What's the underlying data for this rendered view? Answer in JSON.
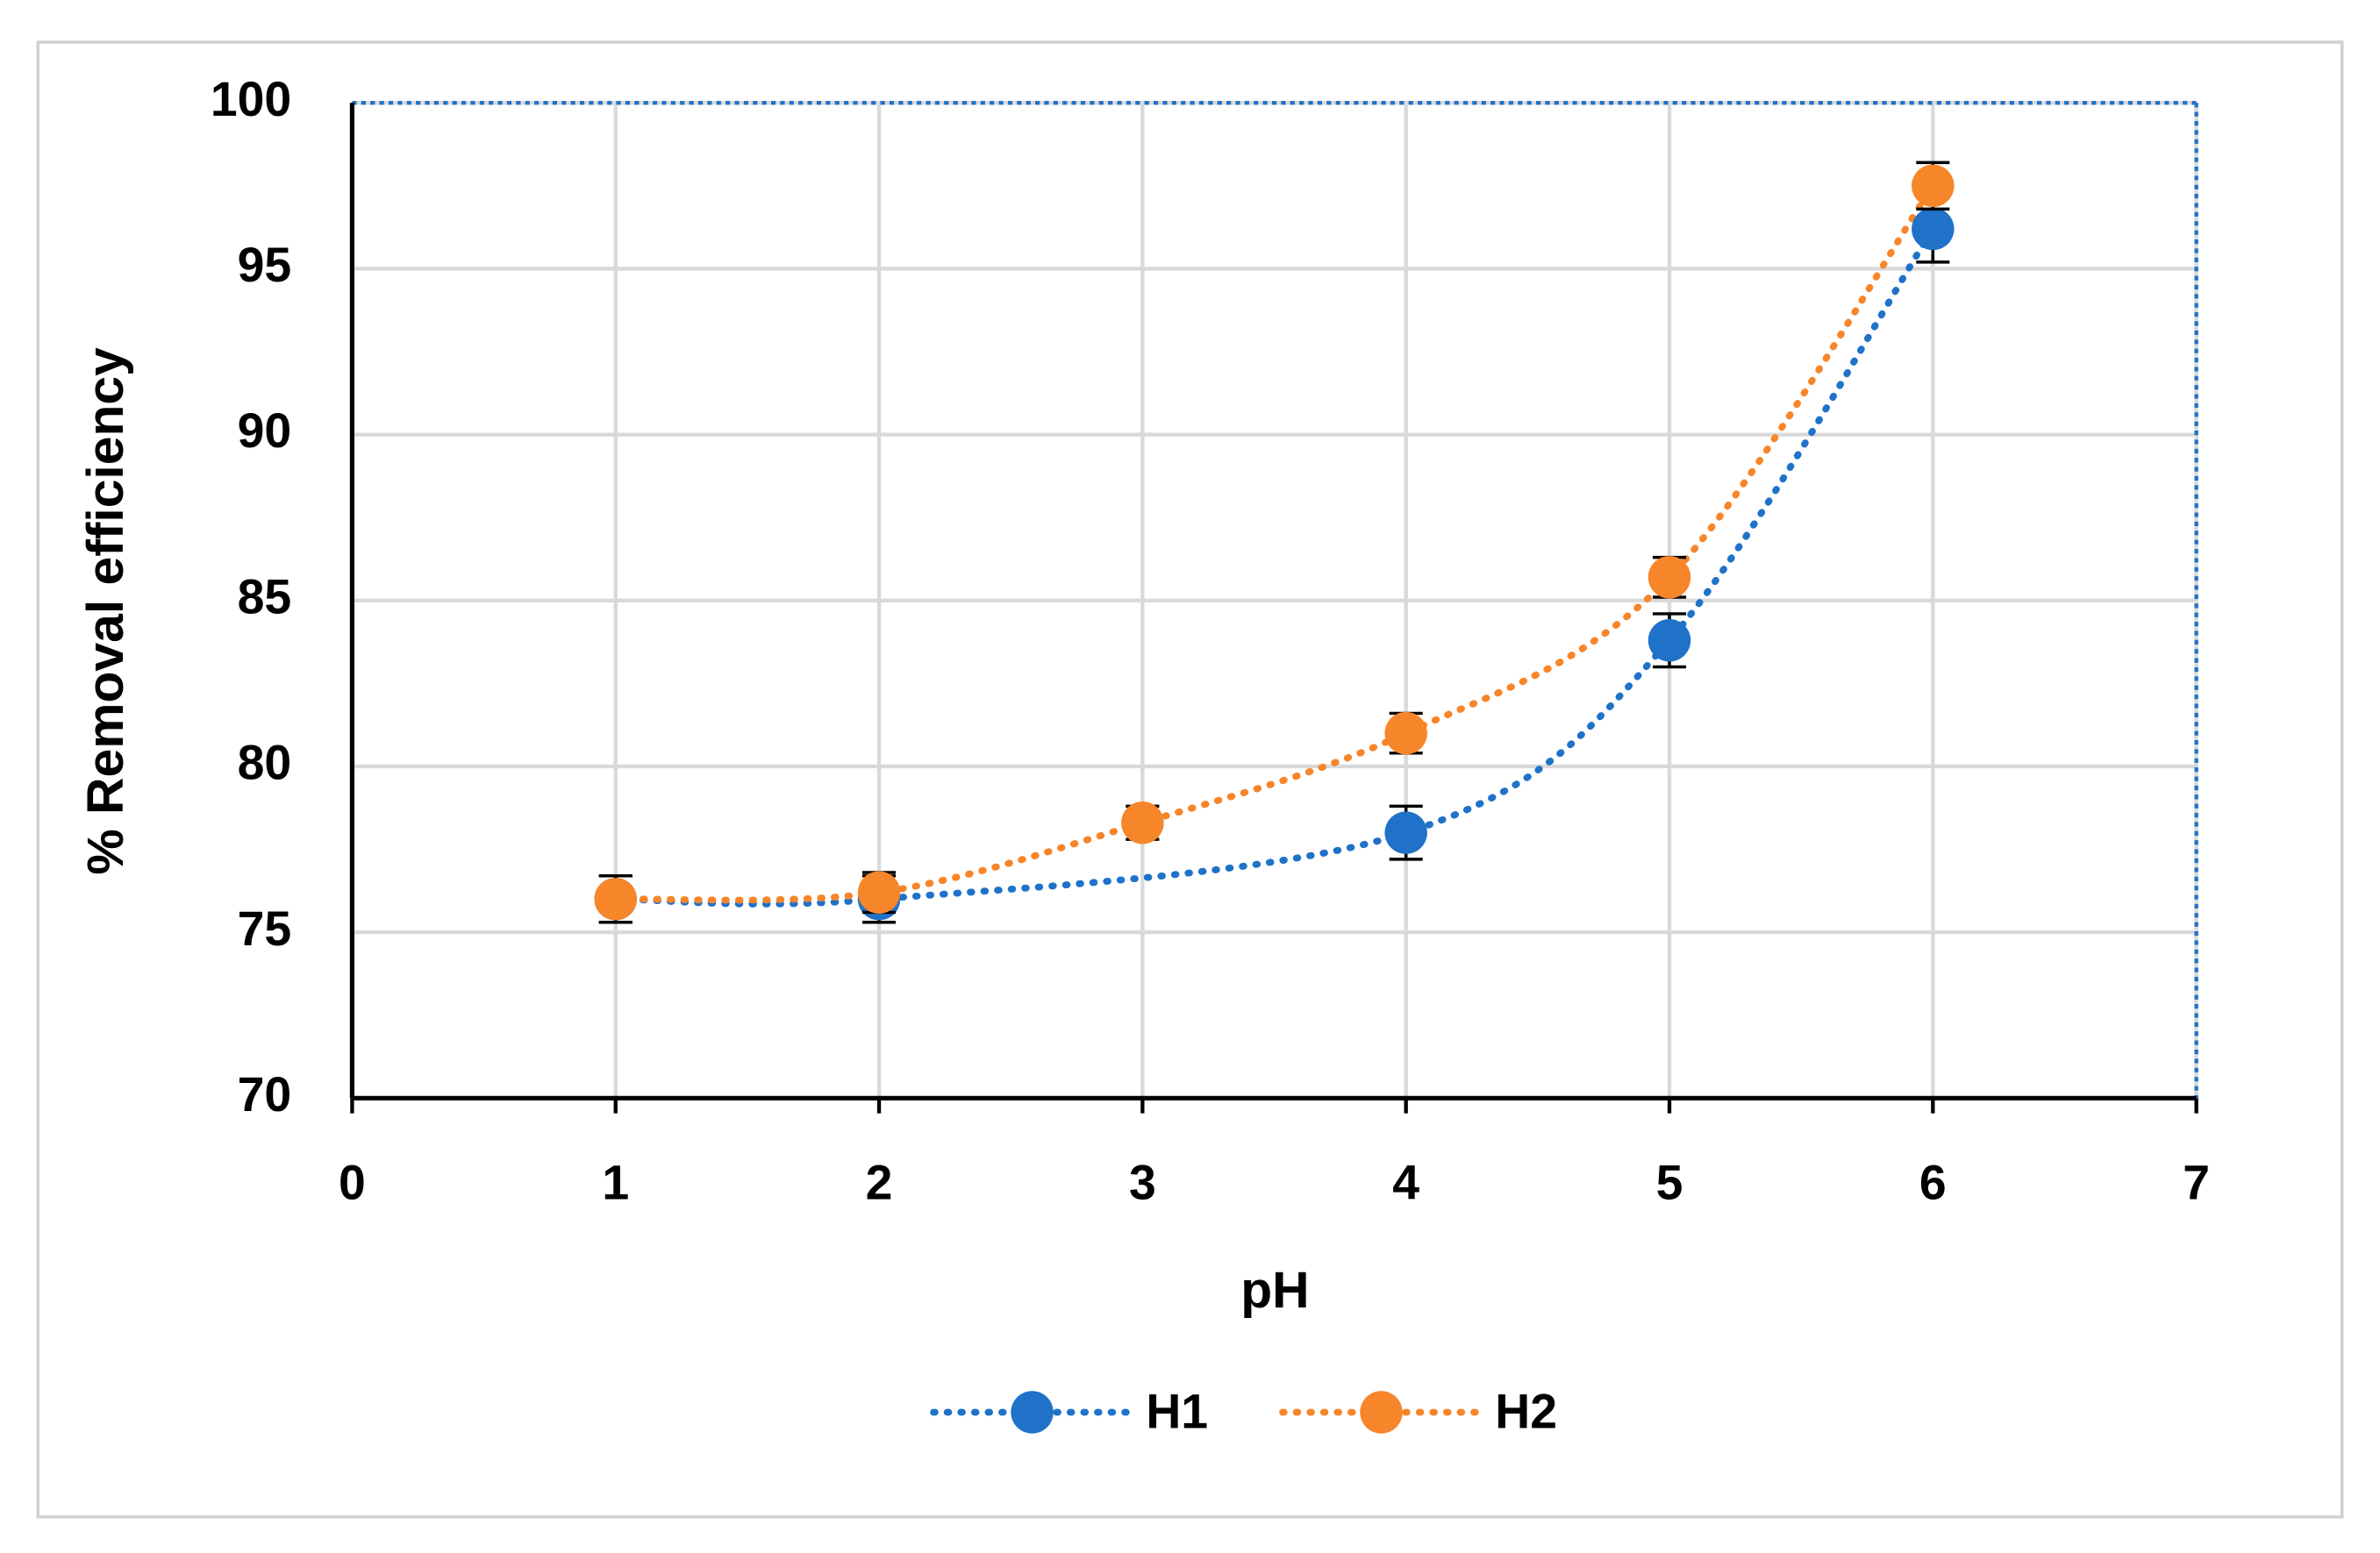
{
  "chart_data": {
    "type": "scatter",
    "x_label": "pH",
    "y_label": "% Removal efficiency",
    "xlim": [
      0,
      7
    ],
    "xticks": [
      0,
      1,
      2,
      3,
      4,
      5,
      6,
      7
    ],
    "ylim": [
      70,
      100
    ],
    "yticks": [
      70,
      75,
      80,
      85,
      90,
      95,
      100
    ],
    "grid": true,
    "legend": "bottom",
    "series": [
      {
        "name": "H1",
        "color": "#1f72c8",
        "x": [
          1,
          2,
          4,
          5,
          6
        ],
        "values": [
          76,
          76,
          78,
          83.8,
          96.2
        ],
        "errors": [
          0.7,
          0.7,
          0.8,
          0.8,
          1.0
        ]
      },
      {
        "name": "H2",
        "color": "#f7852a",
        "x": [
          1,
          2,
          3,
          4,
          5,
          6
        ],
        "values": [
          76,
          76.2,
          78.3,
          81,
          85.7,
          97.5
        ],
        "errors": [
          0.7,
          0.6,
          0.5,
          0.6,
          0.6,
          0.7
        ]
      }
    ]
  }
}
